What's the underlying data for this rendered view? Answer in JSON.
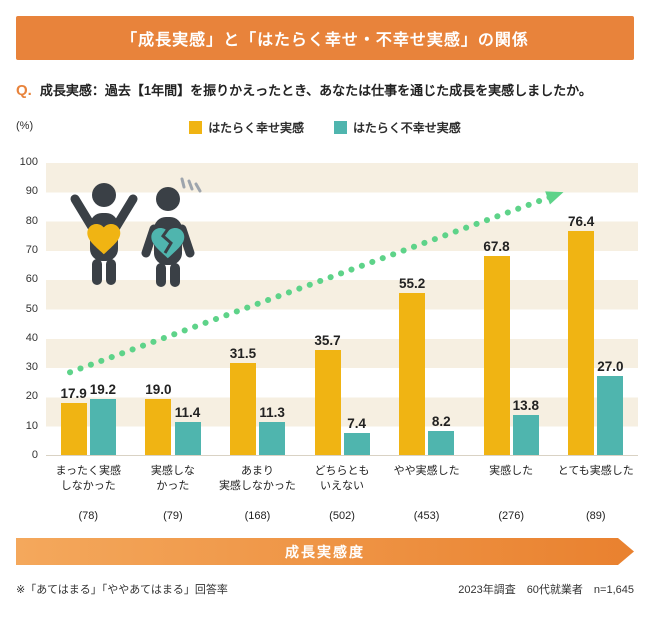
{
  "banner": {
    "title": "「成長実感」と「はたらく幸せ・不幸せ実感」の関係"
  },
  "question": {
    "prefix": "Q.",
    "text": "成長実感：過去【1年間】を振りかえったとき、あなたは仕事を通じた成長を実感しましたか。"
  },
  "colors": {
    "accent_orange": "#E8833B",
    "happy_yellow": "#F0B413",
    "unhappy_teal": "#4FB5AE",
    "trend_green": "#5ED389",
    "stripe_beige": "#F6EFE1"
  },
  "chart_data": {
    "type": "bar",
    "title": "「成長実感」と「はたらく幸せ・不幸せ実感」の関係",
    "unit": "(%)",
    "ylim": [
      0,
      100
    ],
    "yticks": [
      0,
      10,
      20,
      30,
      40,
      50,
      60,
      70,
      80,
      90,
      100
    ],
    "grid": "striped-horizontal-bands",
    "legend_position": "top-center",
    "categories": [
      {
        "lines": [
          "まったく実感",
          "しなかった"
        ],
        "n": "(78)"
      },
      {
        "lines": [
          "実感しな",
          "かった"
        ],
        "n": "(79)"
      },
      {
        "lines": [
          "あまり",
          "実感しなかった"
        ],
        "n": "(168)"
      },
      {
        "lines": [
          "どちらとも",
          "いえない"
        ],
        "n": "(502)"
      },
      {
        "lines": [
          "やや実感した"
        ],
        "n": "(453)"
      },
      {
        "lines": [
          "実感した"
        ],
        "n": "(276)"
      },
      {
        "lines": [
          "とても実感した"
        ],
        "n": "(89)"
      }
    ],
    "series": [
      {
        "name": "はたらく幸せ実感",
        "color": "#F0B413",
        "values": [
          17.9,
          19.0,
          31.5,
          35.7,
          55.2,
          67.8,
          76.4
        ]
      },
      {
        "name": "はたらく不幸せ実感",
        "color": "#4FB5AE",
        "values": [
          19.2,
          11.4,
          11.3,
          7.4,
          8.2,
          13.8,
          27.0
        ]
      }
    ],
    "trend_arrow": "increasing-left-to-right"
  },
  "axis_band": {
    "label": "成長実感度"
  },
  "footer": {
    "note": "※「あてはまる」「ややあてはまる」回答率",
    "source": "2023年調査　60代就業者　n=1,645"
  }
}
